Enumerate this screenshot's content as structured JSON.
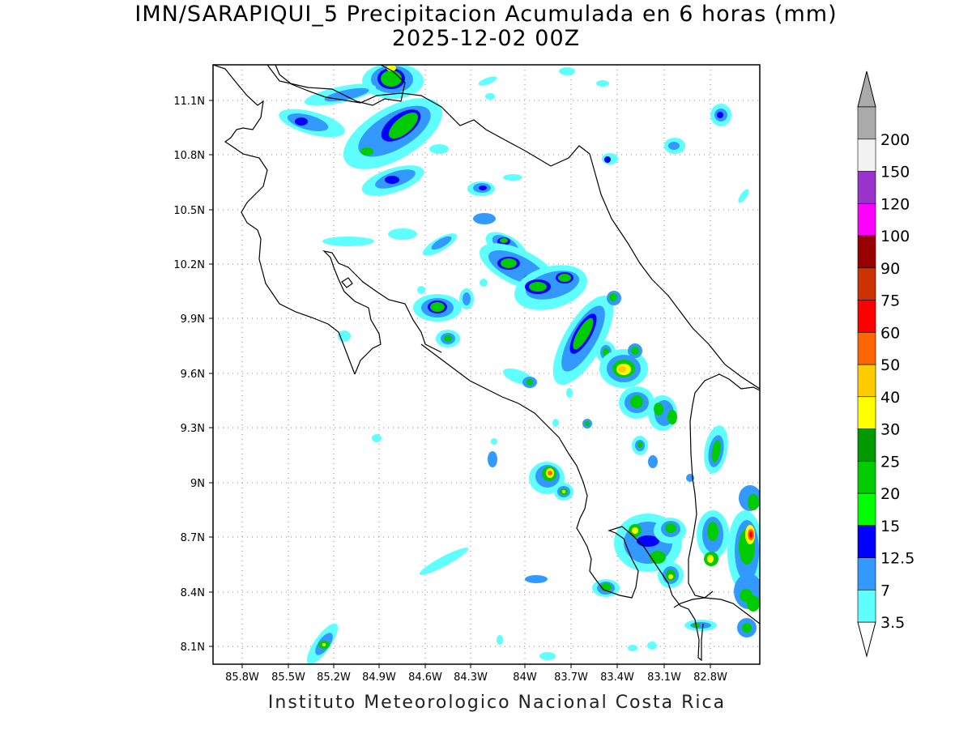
{
  "header": {
    "title": "IMN/SARAPIQUI_5 Precipitacion Acumulada en 6 horas (mm)",
    "subtitle": "2025-12-02 00Z"
  },
  "footer": {
    "credit": "Instituto Meteorologico Nacional Costa Rica"
  },
  "map": {
    "lon_range": [
      -86.0,
      -83.0
    ],
    "lat_range": [
      8.0,
      11.2
    ],
    "x_ticks": [
      "85.8W",
      "85.5W",
      "85.2W",
      "84.9W",
      "84.6W",
      "84.3W",
      "84W",
      "83.7W",
      "83.4W",
      "83.1W",
      "82.8W"
    ],
    "y_ticks": [
      "11.1N",
      "10.8N",
      "10.5N",
      "10.2N",
      "9.9N",
      "9.6N",
      "9.3N",
      "9N",
      "8.7N",
      "8.4N",
      "8.1N"
    ],
    "grid": "dotted",
    "coastline_color": "#000000"
  },
  "legend": {
    "placement": "right",
    "levels": [
      {
        "label": "3.5",
        "color": "#5fffff"
      },
      {
        "label": "7",
        "color": "#3399ff"
      },
      {
        "label": "12.5",
        "color": "#0000ff"
      },
      {
        "label": "15",
        "color": "#00ff00"
      },
      {
        "label": "20",
        "color": "#00cc00"
      },
      {
        "label": "25",
        "color": "#009900"
      },
      {
        "label": "30",
        "color": "#ffff00"
      },
      {
        "label": "40",
        "color": "#ffcc00"
      },
      {
        "label": "50",
        "color": "#ff6600"
      },
      {
        "label": "60",
        "color": "#ff0000"
      },
      {
        "label": "75",
        "color": "#cc3300"
      },
      {
        "label": "90",
        "color": "#990000"
      },
      {
        "label": "100",
        "color": "#ff00ff"
      },
      {
        "label": "120",
        "color": "#9933cc"
      },
      {
        "label": "150",
        "color": "#f2f2f2"
      },
      {
        "label": "200",
        "color": "#aaaaaa"
      }
    ]
  }
}
